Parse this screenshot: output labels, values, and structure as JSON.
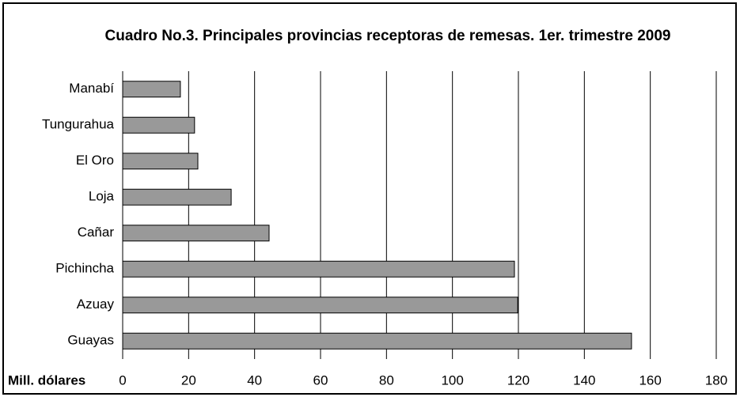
{
  "chart_data": {
    "type": "barh",
    "title": "Cuadro No.3. Principales provincias receptoras de remesas. 1er. trimestre 2009",
    "xlabel": "Mill. dólares",
    "categories": [
      "Manabí",
      "Tungurahua",
      "El Oro",
      "Loja",
      "Cañar",
      "Pichincha",
      "Azuay",
      "Guayas"
    ],
    "values": [
      17.5,
      21.8,
      22.8,
      32.9,
      44.4,
      118.8,
      119.8,
      154.3
    ],
    "color": "#999999",
    "xlim": [
      0,
      180
    ],
    "xticks": [
      0,
      20,
      40,
      60,
      80,
      100,
      120,
      140,
      160,
      180
    ],
    "grid": true
  }
}
